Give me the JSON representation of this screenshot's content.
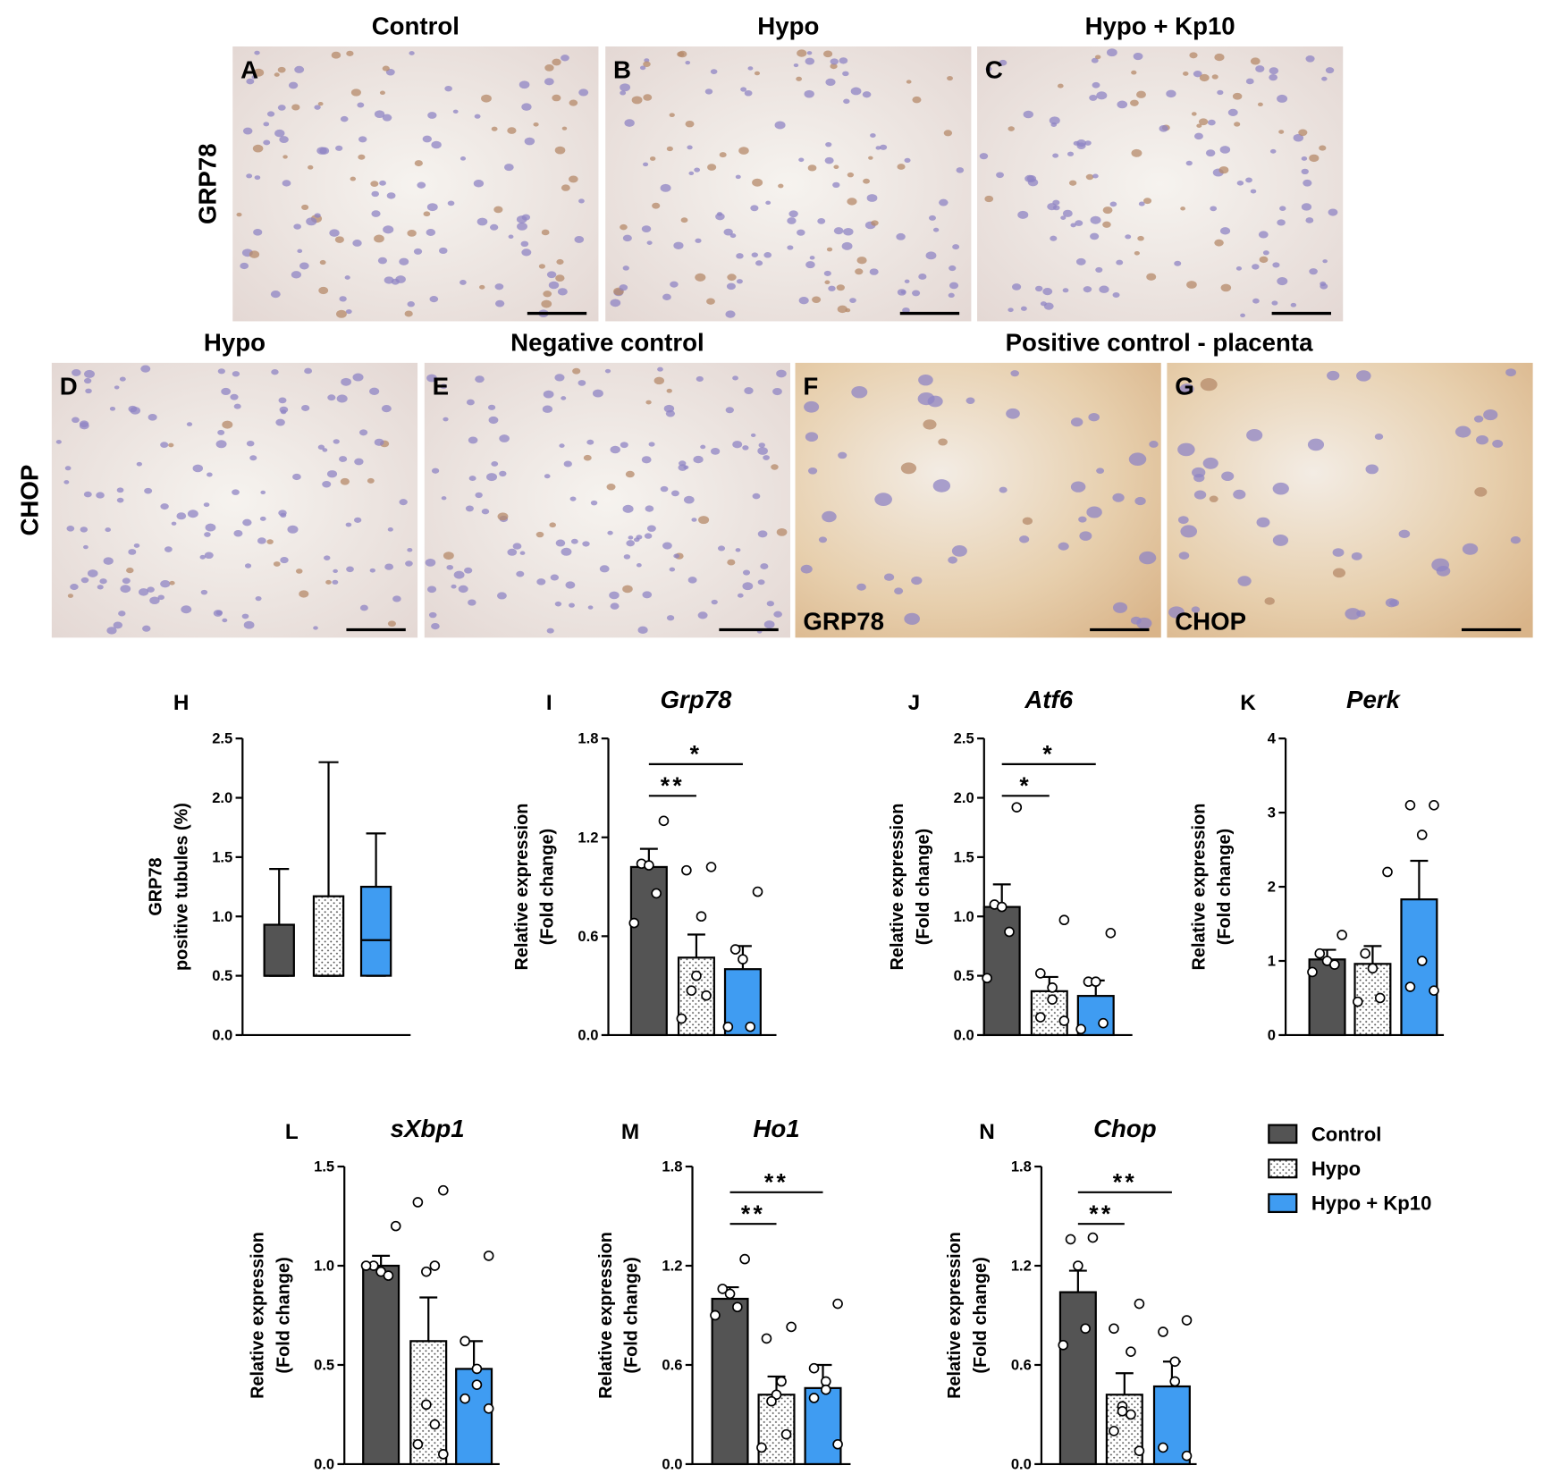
{
  "micrographs": {
    "row_labels": [
      "GRP78",
      "CHOP"
    ],
    "panels": [
      {
        "letter": "A",
        "title": "Control"
      },
      {
        "letter": "B",
        "title": "Hypo"
      },
      {
        "letter": "C",
        "title": "Hypo + Kp10"
      },
      {
        "letter": "D",
        "title": "Hypo"
      },
      {
        "letter": "E",
        "title": "Negative control"
      },
      {
        "letter": "F",
        "inset": "GRP78"
      },
      {
        "letter": "G",
        "inset": "CHOP"
      }
    ],
    "shared_title": "Positive control - placenta"
  },
  "legend": [
    {
      "name": "Control",
      "color": "#545454"
    },
    {
      "name": "Hypo",
      "color": "#ffffff",
      "pattern": "dots"
    },
    {
      "name": "Hypo + Kp10",
      "color": "#3f9cf2"
    }
  ],
  "chart_data": [
    {
      "type": "box",
      "panel": "H",
      "ylabel": [
        "GRP78",
        "positive tubules (%)"
      ],
      "boxes": [
        {
          "min": 0.5,
          "q1": 0.5,
          "median": 0.5,
          "q3": 0.93,
          "max": 1.4
        },
        {
          "min": 0.5,
          "q1": 0.5,
          "median": 0.5,
          "q3": 1.17,
          "max": 2.3
        },
        {
          "min": 0.5,
          "q1": 0.5,
          "median": 0.8,
          "q3": 1.25,
          "max": 1.7
        }
      ],
      "ylim": [
        0,
        2.5
      ],
      "yticks": [
        {
          "value": 0,
          "label": "0.0"
        },
        0.5,
        {
          "value": 1,
          "label": "1.0"
        },
        1.5,
        {
          "value": 2,
          "label": "2.0"
        },
        2.5
      ]
    },
    {
      "type": "bar",
      "panel": "I",
      "title": "Grp78",
      "ylabel": [
        "Relative expression",
        "(Fold change)"
      ],
      "values": [
        1.02,
        0.47,
        0.4
      ],
      "errors": [
        0.11,
        0.14,
        0.14
      ],
      "points": [
        [
          1.3,
          1.04,
          1.03,
          0.86,
          0.68
        ],
        [
          1.02,
          1.0,
          0.72,
          0.36,
          0.27,
          0.24,
          0.1
        ],
        [
          0.87,
          0.52,
          0.46,
          0.05,
          0.05
        ]
      ],
      "annotations": [
        {
          "label": "**",
          "from": 0,
          "to": 1
        },
        {
          "label": "*",
          "from": 0,
          "to": 2
        }
      ],
      "ylim": [
        0,
        1.8
      ],
      "yticks": [
        {
          "value": 0,
          "label": "0.0"
        },
        0.6,
        1.2,
        1.8
      ]
    },
    {
      "type": "bar",
      "panel": "J",
      "title": "Atf6",
      "ylabel": [
        "Relative expression",
        "(Fold change)"
      ],
      "values": [
        1.08,
        0.37,
        0.33
      ],
      "errors": [
        0.19,
        0.12,
        0.13
      ],
      "points": [
        [
          1.92,
          1.1,
          1.08,
          0.87,
          0.48
        ],
        [
          0.97,
          0.52,
          0.4,
          0.3,
          0.15,
          0.12
        ],
        [
          0.86,
          0.45,
          0.45,
          0.1,
          0.05
        ]
      ],
      "annotations": [
        {
          "label": "*",
          "from": 0,
          "to": 1
        },
        {
          "label": "*",
          "from": 0,
          "to": 2
        }
      ],
      "ylim": [
        0,
        2.5
      ],
      "yticks": [
        {
          "value": 0,
          "label": "0.0"
        },
        0.5,
        {
          "value": 1,
          "label": "1.0"
        },
        1.5,
        {
          "value": 2,
          "label": "2.0"
        },
        2.5
      ]
    },
    {
      "type": "bar",
      "panel": "K",
      "title": "Perk",
      "ylabel": [
        "Relative expression",
        "(Fold change)"
      ],
      "values": [
        1.02,
        0.96,
        1.83
      ],
      "errors": [
        0.13,
        0.24,
        0.52
      ],
      "points": [
        [
          1.35,
          1.1,
          1.0,
          0.95,
          0.85
        ],
        [
          2.2,
          1.1,
          0.9,
          0.5,
          0.45
        ],
        [
          3.1,
          3.1,
          2.7,
          1.0,
          0.65,
          0.6
        ]
      ],
      "annotations": [],
      "ylim": [
        0,
        4
      ],
      "yticks": [
        0,
        1,
        2,
        3,
        4
      ]
    },
    {
      "type": "bar",
      "panel": "L",
      "title": "sXbp1",
      "ylabel": [
        "Relative expression",
        "(Fold change)"
      ],
      "values": [
        1.0,
        0.62,
        0.48
      ],
      "errors": [
        0.05,
        0.22,
        0.14
      ],
      "points": [
        [
          1.2,
          1.0,
          0.97,
          0.95,
          1.0
        ],
        [
          1.38,
          1.32,
          1.0,
          0.97,
          0.3,
          0.2,
          0.1,
          0.05
        ],
        [
          1.05,
          0.62,
          0.48,
          0.4,
          0.33,
          0.28
        ]
      ],
      "annotations": [],
      "ylim": [
        0,
        1.5
      ],
      "yticks": [
        {
          "value": 0,
          "label": "0.0"
        },
        0.5,
        {
          "value": 1,
          "label": "1.0"
        },
        1.5
      ]
    },
    {
      "type": "bar",
      "panel": "M",
      "title": "Ho1",
      "ylabel": [
        "Relative expression",
        "(Fold change)"
      ],
      "values": [
        1.0,
        0.42,
        0.46
      ],
      "errors": [
        0.07,
        0.11,
        0.14
      ],
      "points": [
        [
          1.24,
          1.06,
          1.03,
          0.95,
          0.9
        ],
        [
          0.83,
          0.76,
          0.5,
          0.42,
          0.38,
          0.18,
          0.1
        ],
        [
          0.97,
          0.58,
          0.5,
          0.45,
          0.4,
          0.12
        ]
      ],
      "annotations": [
        {
          "label": "**",
          "from": 0,
          "to": 1
        },
        {
          "label": "**",
          "from": 0,
          "to": 2
        }
      ],
      "ylim": [
        0,
        1.8
      ],
      "yticks": [
        {
          "value": 0,
          "label": "0.0"
        },
        0.6,
        1.2,
        1.8
      ]
    },
    {
      "type": "bar",
      "panel": "N",
      "title": "Chop",
      "ylabel": [
        "Relative expression",
        "(Fold change)"
      ],
      "values": [
        1.04,
        0.42,
        0.47
      ],
      "errors": [
        0.13,
        0.13,
        0.15
      ],
      "points": [
        [
          1.37,
          1.36,
          1.2,
          0.82,
          0.72
        ],
        [
          0.97,
          0.82,
          0.68,
          0.35,
          0.32,
          0.3,
          0.2,
          0.08
        ],
        [
          0.87,
          0.8,
          0.62,
          0.5,
          0.1,
          0.05
        ]
      ],
      "annotations": [
        {
          "label": "**",
          "from": 0,
          "to": 1
        },
        {
          "label": "**",
          "from": 0,
          "to": 2
        }
      ],
      "ylim": [
        0,
        1.8
      ],
      "yticks": [
        {
          "value": 0,
          "label": "0.0"
        },
        0.6,
        1.2,
        1.8
      ]
    }
  ]
}
